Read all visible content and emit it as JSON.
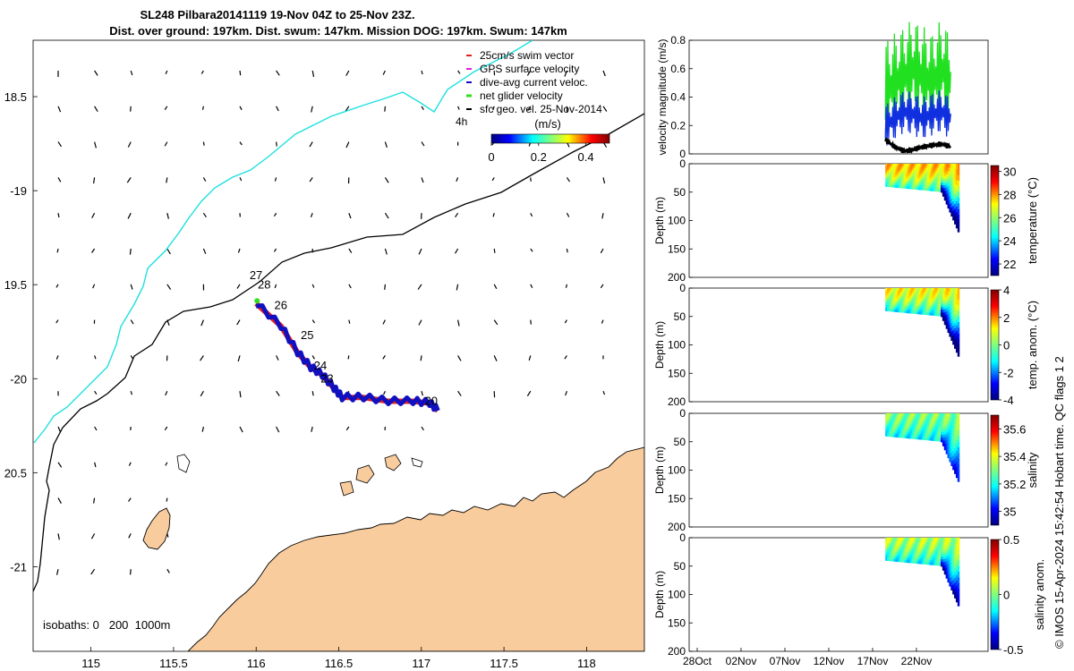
{
  "figure": {
    "title_line1": "SL248 Pilbara20141119 19-Nov 04Z to 25-Nov 23Z.",
    "title_line2": "Dist. over ground: 197km. Dist. swum: 147km. Mission DOG: 197km. Swum: 147km",
    "copyright": "© IMOS 15-Apr-2024 15:42:54 Hobart time. QC flags 1  2"
  },
  "colors": {
    "land": "#f9cc9e",
    "coast_blue": "#1ee0e0",
    "glider_red": "#e02020",
    "glider_blue": "#1010c0",
    "net_green": "#30e020",
    "gps_magenta": "#e020e0",
    "vmag_green": "#20e020",
    "vmag_blue": "#1030e0"
  },
  "chart_data": [
    {
      "type": "scatter",
      "name": "map",
      "xlim": [
        114.65,
        118.35
      ],
      "ylim": [
        -21.45,
        -18.2
      ],
      "xticks": [
        115,
        115.5,
        116,
        116.5,
        117,
        117.5,
        118
      ],
      "xtick_labels": [
        "115",
        "115.5",
        "116",
        "116.5",
        "117",
        "117.5",
        "118"
      ],
      "yticks": [
        -18.5,
        -19,
        -19.5,
        -20,
        -20.5,
        -21
      ],
      "ytick_labels": [
        "18.5",
        "-19",
        "19.5",
        "-20",
        "20.5",
        "-21"
      ],
      "legend": {
        "position": "top-right",
        "entries": [
          {
            "label": "25cm/s swim vector",
            "color": "#e02020"
          },
          {
            "label": "GPS surface velocity",
            "color": "#e020e0"
          },
          {
            "label": "dive-avg current veloc.",
            "color": "#1010c0"
          },
          {
            "label": "net glider velocity",
            "color": "#30e020"
          },
          {
            "label": "sfc geo. vel. 25-Nov-2014",
            "color": "#000000"
          }
        ],
        "note": "4h"
      },
      "colorbar": {
        "label": "(m/s)",
        "ticks": [
          "0",
          "0.2",
          "0.4"
        ],
        "range": [
          0,
          0.5
        ]
      },
      "isobath_label": "isobaths: 0   200  1000m",
      "track": {
        "lon": [
          116.0,
          116.15,
          116.25,
          116.33,
          116.4,
          116.47,
          116.52,
          116.65,
          116.8,
          116.95,
          117.05,
          117.1
        ],
        "lat": [
          -19.6,
          -19.72,
          -19.86,
          -19.94,
          -19.98,
          -20.05,
          -20.1,
          -20.1,
          -20.12,
          -20.12,
          -20.13,
          -20.17
        ]
      },
      "day_labels": [
        {
          "text": "27",
          "lon": 115.96,
          "lat": -19.47
        },
        {
          "text": "28",
          "lon": 116.01,
          "lat": -19.52
        },
        {
          "text": "26",
          "lon": 116.11,
          "lat": -19.63
        },
        {
          "text": "25",
          "lon": 116.27,
          "lat": -19.79
        },
        {
          "text": "24",
          "lon": 116.35,
          "lat": -19.95
        },
        {
          "text": "23",
          "lon": 116.39,
          "lat": -20.02
        },
        {
          "text": "20",
          "lon": 117.02,
          "lat": -20.14
        }
      ]
    },
    {
      "type": "line",
      "name": "velocity magnitude",
      "ylabel": "velocity magnitude (m/s)",
      "ylim": [
        0,
        0.8
      ],
      "yticks": [
        "0",
        "0.2",
        "0.4",
        "0.6",
        "0.8"
      ],
      "xlim_days": [
        -1,
        31
      ],
      "series": [
        {
          "color": "#20e020",
          "x": [
            20.0,
            21.0,
            22.0,
            23.0,
            24.0,
            25.0,
            26.0,
            27.0
          ],
          "y": [
            0.45,
            0.5,
            0.55,
            0.6,
            0.55,
            0.5,
            0.6,
            0.5
          ]
        },
        {
          "color": "#1030e0",
          "x": [
            20.0,
            21.0,
            22.0,
            23.0,
            24.0,
            25.0,
            26.0,
            27.0
          ],
          "y": [
            0.2,
            0.25,
            0.3,
            0.28,
            0.25,
            0.28,
            0.3,
            0.25
          ]
        },
        {
          "color": "#000000",
          "x": [
            20.0,
            21.0,
            22.0,
            23.0,
            24.0,
            25.0,
            26.0,
            27.0
          ],
          "y": [
            0.1,
            0.05,
            0.02,
            0.03,
            0.05,
            0.06,
            0.07,
            0.05
          ]
        }
      ]
    },
    {
      "type": "heatmap",
      "name": "temperature",
      "ylabel": "Depth (m)",
      "cbar_label": "temperature (°C)",
      "ylim": [
        0,
        200
      ],
      "yticks": [
        "0",
        "50",
        "100",
        "150",
        "200"
      ],
      "cbar_ticks": [
        "22",
        "24",
        "26",
        "28",
        "30"
      ],
      "cbar_range": [
        21,
        30.5
      ],
      "base_value": 27.5,
      "deep_value": 22.5
    },
    {
      "type": "heatmap",
      "name": "temp. anom.",
      "ylabel": "Depth (m)",
      "cbar_label": "temp. anom. (°C)",
      "ylim": [
        0,
        200
      ],
      "yticks": [
        "0",
        "50",
        "100",
        "150",
        "200"
      ],
      "cbar_ticks": [
        "-4",
        "-2",
        "0",
        "2",
        "4"
      ],
      "cbar_range": [
        -4,
        4
      ],
      "base_value": 1.0,
      "deep_value": -3.0
    },
    {
      "type": "heatmap",
      "name": "salinity",
      "ylabel": "Depth (m)",
      "cbar_label": "salinity",
      "ylim": [
        0,
        200
      ],
      "yticks": [
        "0",
        "50",
        "100",
        "150",
        "200"
      ],
      "cbar_ticks": [
        "35",
        "35.2",
        "35.4",
        "35.6"
      ],
      "cbar_range": [
        34.9,
        35.7
      ],
      "base_value": 35.3,
      "deep_value": 35.1
    },
    {
      "type": "heatmap",
      "name": "salinity anom.",
      "ylabel": "Depth (m)",
      "cbar_label": "salinity anom.",
      "ylim": [
        0,
        200
      ],
      "yticks": [
        "0",
        "50",
        "100",
        "150",
        "200"
      ],
      "cbar_ticks": [
        "-0.5",
        "0",
        "0.5"
      ],
      "cbar_range": [
        -0.5,
        0.5
      ],
      "base_value": 0.05,
      "deep_value": -0.3,
      "xtick_labels": [
        "28Oct",
        "02Nov",
        "07Nov",
        "12Nov",
        "17Nov",
        "22Nov"
      ]
    }
  ]
}
